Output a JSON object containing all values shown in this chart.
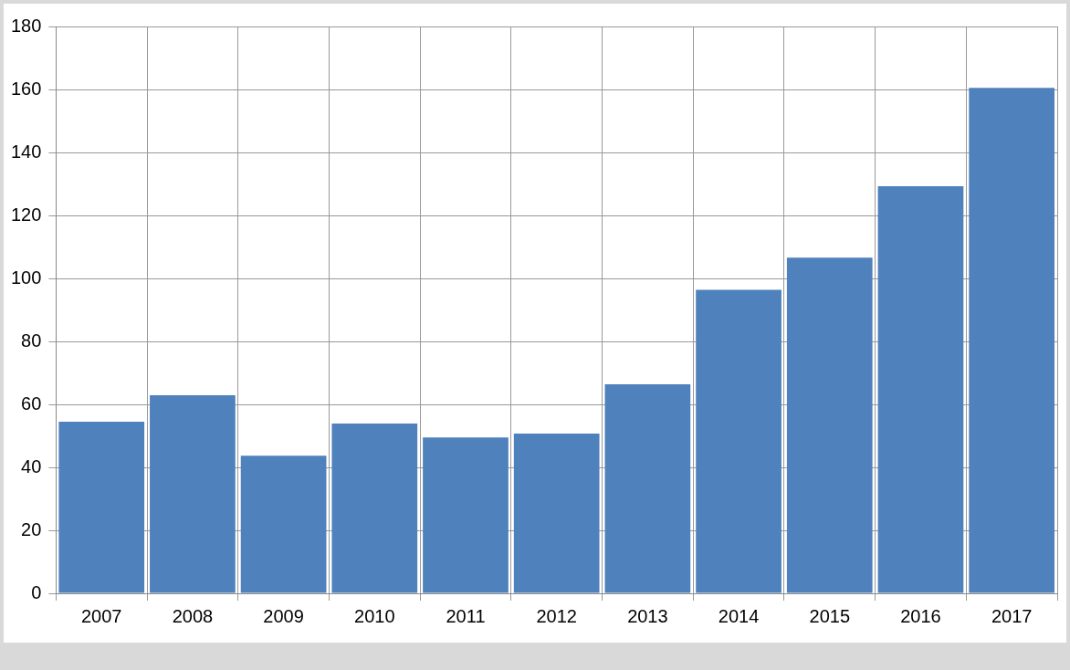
{
  "chart_data": {
    "type": "bar",
    "categories": [
      "2007",
      "2008",
      "2009",
      "2010",
      "2011",
      "2012",
      "2013",
      "2014",
      "2015",
      "2016",
      "2017"
    ],
    "values": [
      54.5,
      62.9,
      43.7,
      53.9,
      49.5,
      50.7,
      66.4,
      96.4,
      106.6,
      129.3,
      160.5
    ],
    "color": "#4f81bd",
    "ylim": [
      0,
      180
    ],
    "yticks": [
      0,
      20,
      40,
      60,
      80,
      100,
      120,
      140,
      160,
      180
    ],
    "grid": true,
    "legend": false
  }
}
